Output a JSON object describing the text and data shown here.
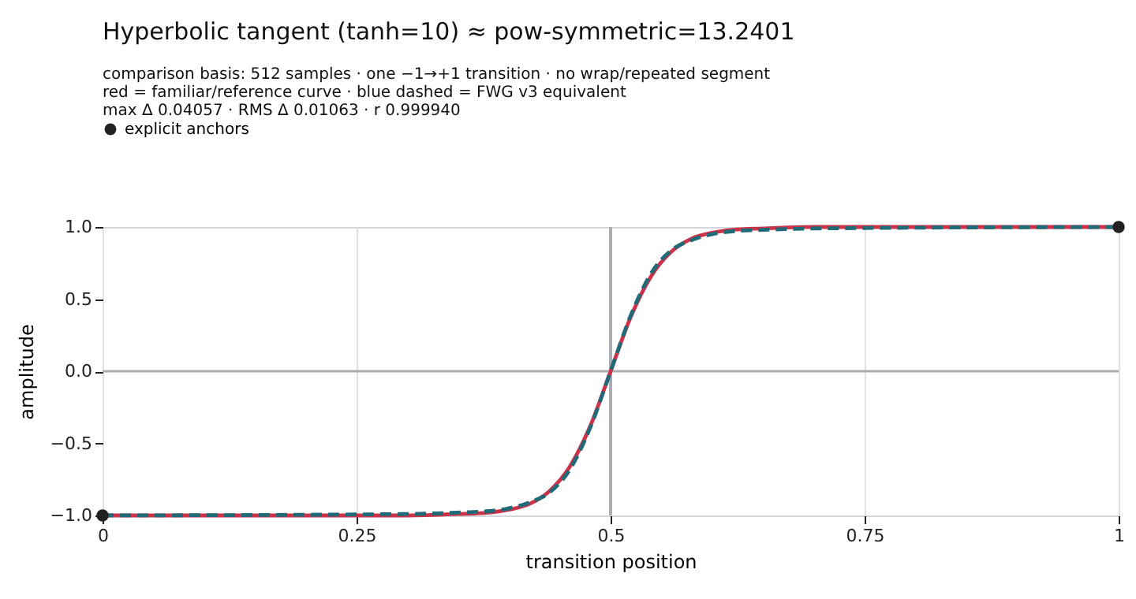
{
  "chart_data": {
    "type": "line",
    "title": "Hyperbolic tangent (tanh=10) ≈ pow-symmetric=13.2401",
    "subtitle": [
      "comparison basis: 512 samples · one −1→+1 transition · no wrap/repeated segment",
      "red = familiar/reference curve · blue dashed = FWG v3 equivalent",
      "max Δ 0.04057 · RMS Δ 0.01063 · r 0.999940"
    ],
    "xlabel": "transition position",
    "ylabel": "amplitude",
    "xlim": [
      0,
      1
    ],
    "xticks": [
      0,
      0.25,
      0.5,
      0.75,
      1
    ],
    "ylim": [
      -1,
      1
    ],
    "yticks": [
      {
        "value": -1,
        "label": "−1.0"
      },
      {
        "value": -0.5,
        "label": "−0.5"
      },
      {
        "value": 0,
        "label": "0.0"
      },
      {
        "value": 0.5,
        "label": "0.5"
      },
      {
        "value": 1,
        "label": "1.0"
      }
    ],
    "grid": "x",
    "legend": "top left",
    "ref_lines": [
      {
        "axis": "x",
        "value": 0.5,
        "color": "#a9adb2"
      },
      {
        "axis": "y",
        "value": 0,
        "color": "#a9adb2"
      }
    ],
    "series": [
      {
        "color": "#cc3349",
        "line_style": "solid",
        "x": [
          0,
          0.3,
          0.35,
          0.38,
          0.4,
          0.42,
          0.44,
          0.46,
          0.48,
          0.5,
          0.52,
          0.54,
          0.56,
          0.58,
          0.6,
          0.62,
          0.65,
          0.7,
          1
        ],
        "values": [
          -1,
          -1,
          -0.99,
          -0.98,
          -0.96,
          -0.92,
          -0.83,
          -0.66,
          -0.38,
          0,
          0.38,
          0.66,
          0.83,
          0.92,
          0.96,
          0.98,
          0.99,
          1,
          1
        ]
      },
      {
        "color": "#1f6b78",
        "line_style": "dashed",
        "x": [
          0,
          0.3,
          0.35,
          0.38,
          0.4,
          0.42,
          0.44,
          0.46,
          0.48,
          0.5,
          0.52,
          0.54,
          0.56,
          0.58,
          0.6,
          0.62,
          0.65,
          0.7,
          1
        ],
        "values": [
          -1,
          -0.99,
          -0.98,
          -0.97,
          -0.95,
          -0.91,
          -0.84,
          -0.68,
          -0.39,
          0,
          0.39,
          0.68,
          0.84,
          0.91,
          0.95,
          0.97,
          0.98,
          0.99,
          1
        ]
      },
      {
        "type": "scatter",
        "name": "explicit anchors",
        "color": "#222222",
        "marker": "circle",
        "x": [
          0,
          1
        ],
        "values": [
          -1,
          1
        ]
      }
    ]
  }
}
